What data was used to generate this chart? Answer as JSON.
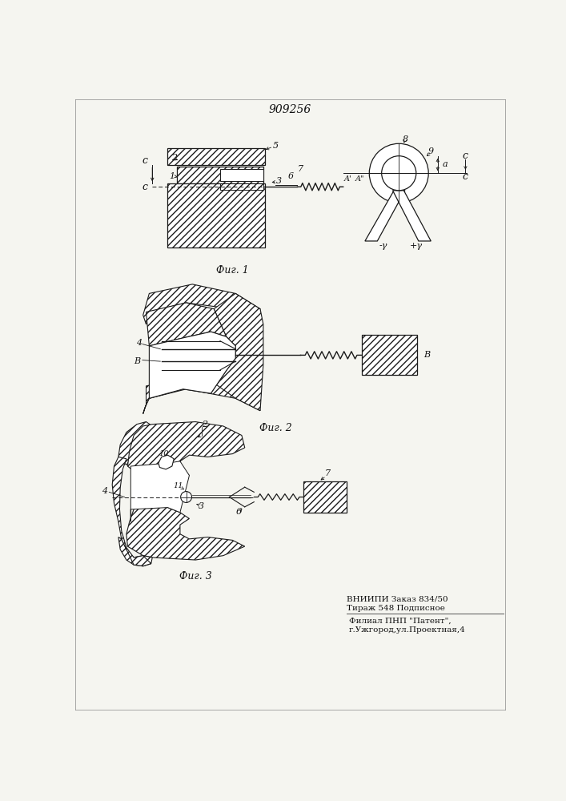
{
  "title": "909256",
  "fig1_label": "Фиг. 1",
  "fig2_label": "Фиг. 2",
  "fig3_label": "Фиг. 3",
  "footer_line1": "ВНИИПИ Заказ 834/50",
  "footer_line2": "Тираж 548 Подписное",
  "footer_line3": "Филиал ПНП \"Патент\",",
  "footer_line4": "г.Ужгород,ул.Проектная,4",
  "bg_color": "#f5f5f0",
  "line_color": "#1a1a1a",
  "text_color": "#111111"
}
